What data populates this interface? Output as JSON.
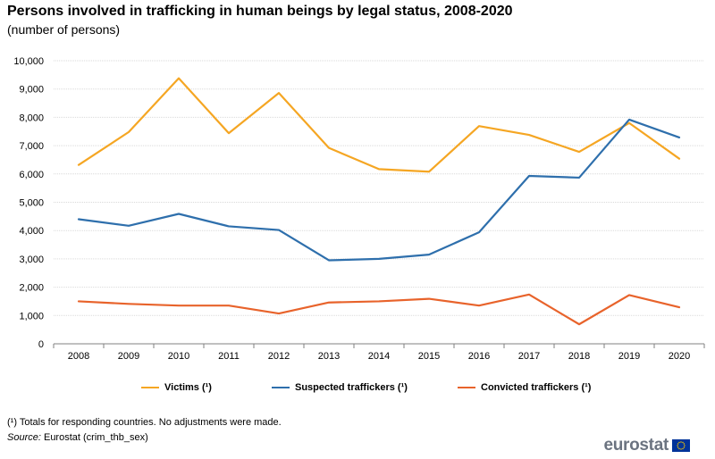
{
  "header": {
    "title": "Persons involved in trafficking in human beings by legal status, 2008-2020",
    "subtitle": "(number of persons)"
  },
  "chart_data": {
    "type": "line",
    "title": "Persons involved in trafficking in human beings by legal status, 2008-2020",
    "subtitle": "(number of persons)",
    "xlabel": "",
    "ylabel": "",
    "ylim": [
      0,
      10000
    ],
    "yticks": [
      0,
      1000,
      2000,
      3000,
      4000,
      5000,
      6000,
      7000,
      8000,
      9000,
      10000
    ],
    "ytick_labels": [
      "0",
      "1,000",
      "2,000",
      "3,000",
      "4,000",
      "5,000",
      "6,000",
      "7,000",
      "8,000",
      "9,000",
      "10,000"
    ],
    "grid": true,
    "legend_position": "bottom",
    "categories": [
      "2008",
      "2009",
      "2010",
      "2011",
      "2012",
      "2013",
      "2014",
      "2015",
      "2016",
      "2017",
      "2018",
      "2019",
      "2020"
    ],
    "series": [
      {
        "name": "Victims (¹)",
        "color": "#f5a623",
        "values": [
          6320,
          7480,
          9380,
          7440,
          8860,
          6920,
          6170,
          6080,
          7690,
          7380,
          6780,
          7800,
          6540
        ]
      },
      {
        "name": "Suspected traffickers (¹)",
        "color": "#2e6fac",
        "values": [
          4400,
          4170,
          4590,
          4150,
          4020,
          2950,
          3000,
          3150,
          3940,
          5930,
          5870,
          7920,
          7290
        ]
      },
      {
        "name": "Convicted traffickers (¹)",
        "color": "#e8632b",
        "values": [
          1500,
          1410,
          1350,
          1350,
          1070,
          1460,
          1500,
          1590,
          1350,
          1740,
          690,
          1720,
          1290
        ]
      }
    ]
  },
  "footer": {
    "footnote": "(¹) Totals for responding countries. No adjustments were made.",
    "source_label": "Source:",
    "source_text": " Eurostat (crim_thb_sex)",
    "logo_text": "eurostat"
  }
}
